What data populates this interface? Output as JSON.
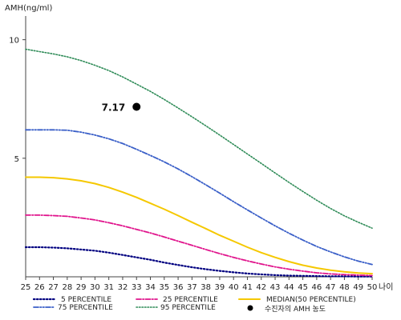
{
  "chart_data": {
    "type": "line",
    "ylabel": "AMH(ng/ml)",
    "xlabel": "나이",
    "xlim": [
      25,
      50
    ],
    "ylim": [
      0,
      11
    ],
    "x_ticks": [
      25,
      26,
      27,
      28,
      29,
      30,
      31,
      32,
      33,
      34,
      35,
      36,
      37,
      38,
      39,
      40,
      41,
      42,
      43,
      44,
      45,
      46,
      47,
      48,
      49,
      50
    ],
    "y_ticks": [
      5,
      10
    ],
    "grid": false,
    "legend_position": "bottom",
    "x": [
      25,
      26,
      27,
      28,
      29,
      30,
      31,
      32,
      33,
      34,
      35,
      36,
      37,
      38,
      39,
      40,
      41,
      42,
      43,
      44,
      45,
      46,
      47,
      48,
      49,
      50
    ],
    "series": [
      {
        "name": "5 PERCENTILE",
        "color": "#000080",
        "dash": "1.5,2.5",
        "width": 2.2,
        "values": [
          1.25,
          1.25,
          1.23,
          1.2,
          1.15,
          1.1,
          1.02,
          0.92,
          0.82,
          0.72,
          0.6,
          0.5,
          0.4,
          0.32,
          0.25,
          0.19,
          0.14,
          0.1,
          0.07,
          0.05,
          0.04,
          0.03,
          0.02,
          0.02,
          0.01,
          0.01
        ]
      },
      {
        "name": "25 PERCENTILE",
        "color": "#e0148c",
        "dash": "6,2,1.5,2",
        "width": 1.8,
        "values": [
          2.6,
          2.6,
          2.58,
          2.55,
          2.48,
          2.4,
          2.28,
          2.15,
          2.0,
          1.85,
          1.68,
          1.5,
          1.33,
          1.15,
          0.98,
          0.82,
          0.67,
          0.54,
          0.42,
          0.32,
          0.24,
          0.17,
          0.12,
          0.09,
          0.07,
          0.05
        ]
      },
      {
        "name": "MEDIAN(50 PERCENTILE)",
        "color": "#f5c800",
        "dash": "",
        "width": 2,
        "values": [
          4.2,
          4.2,
          4.18,
          4.13,
          4.05,
          3.93,
          3.77,
          3.57,
          3.35,
          3.1,
          2.85,
          2.58,
          2.3,
          2.03,
          1.75,
          1.5,
          1.25,
          1.02,
          0.82,
          0.64,
          0.49,
          0.37,
          0.28,
          0.21,
          0.16,
          0.13
        ]
      },
      {
        "name": "75 PERCENTILE",
        "color": "#3a5fc8",
        "dash": "6,2,1.5,2,1.5,2",
        "width": 1.8,
        "values": [
          6.2,
          6.2,
          6.2,
          6.18,
          6.1,
          5.98,
          5.82,
          5.62,
          5.38,
          5.12,
          4.85,
          4.55,
          4.22,
          3.88,
          3.53,
          3.17,
          2.82,
          2.48,
          2.15,
          1.84,
          1.55,
          1.28,
          1.05,
          0.84,
          0.66,
          0.52
        ]
      },
      {
        "name": "95 PERCENTILE",
        "color": "#2e8b57",
        "dash": "1.5,2",
        "width": 1.6,
        "values": [
          9.6,
          9.5,
          9.4,
          9.28,
          9.12,
          8.92,
          8.7,
          8.43,
          8.13,
          7.82,
          7.48,
          7.12,
          6.75,
          6.37,
          5.98,
          5.58,
          5.18,
          4.78,
          4.38,
          3.98,
          3.6,
          3.23,
          2.88,
          2.57,
          2.3,
          2.05
        ]
      }
    ],
    "point": {
      "name": "수진자의 AMH 농도",
      "x": 33,
      "y": 7.17,
      "label": "7.17",
      "color": "#000000"
    }
  }
}
